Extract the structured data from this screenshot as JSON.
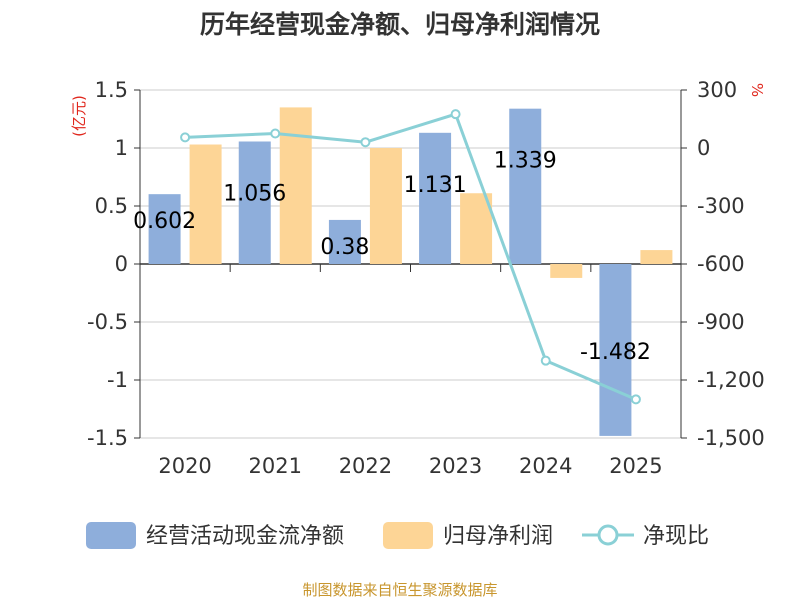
{
  "colors": {
    "cash_flow": "#8eaedb",
    "net_profit": "#fdd596",
    "ratio": "#8ad0d6",
    "unit_left": "#e0261c",
    "unit_right": "#e0261c",
    "source": "#c8962e",
    "grid": "#cccccc",
    "axis": "#333333"
  },
  "chart_data": {
    "type": "bar",
    "title": "历年经营现金净额、归母净利润情况",
    "categories": [
      "2020",
      "2021",
      "2022",
      "2023",
      "2024",
      "2025"
    ],
    "y_left": {
      "unit": "(亿元)",
      "ylim": [
        -1.5,
        1.5
      ],
      "ticks": [
        "1.5",
        "1",
        "0.5",
        "0",
        "-0.5",
        "-1",
        "-1.5"
      ]
    },
    "y_right": {
      "unit": "%",
      "ylim": [
        -1500,
        300
      ],
      "ticks": [
        "300",
        "0",
        "-300",
        "-600",
        "-900",
        "-1,200",
        "-1,500"
      ]
    },
    "series": [
      {
        "name": "经营活动现金流净额",
        "type": "bar",
        "axis": "left",
        "values": [
          0.602,
          1.056,
          0.38,
          1.131,
          1.339,
          -1.482
        ],
        "labels": [
          "0.602",
          "1.056",
          "0.38",
          "1.131",
          "1.339",
          "-1.482"
        ]
      },
      {
        "name": "归母净利润",
        "type": "bar",
        "axis": "left",
        "values": [
          1.03,
          1.35,
          1.0,
          0.61,
          -0.12,
          0.12
        ]
      },
      {
        "name": "净现比",
        "type": "line",
        "axis": "right",
        "values": [
          55,
          75,
          30,
          175,
          -1100,
          -1300
        ]
      }
    ],
    "grid": true,
    "legend_position": "bottom"
  },
  "footer": {
    "source": "制图数据来自恒生聚源数据库"
  }
}
